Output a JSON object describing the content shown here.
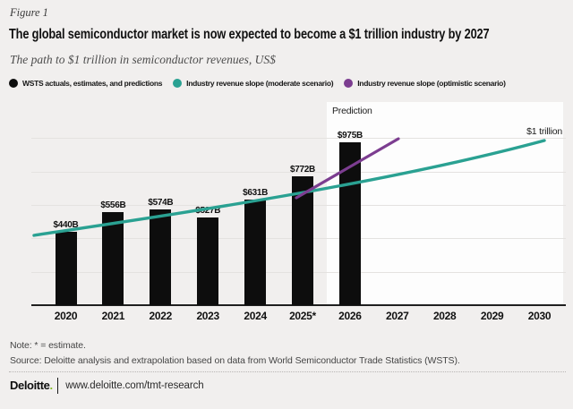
{
  "page": {
    "figure_label": "Figure 1",
    "title": "The global semiconductor market is now expected to become a $1 trillion industry by 2027",
    "subtitle": "The path to $1 trillion in semiconductor revenues, US$",
    "note": "Note: * = estimate.",
    "source": "Source: Deloitte analysis and extrapolation based on data from World Semiconductor Trade Statistics (WSTS).",
    "footer": {
      "brand": "Deloitte",
      "brand_dot": ".",
      "url": "www.deloitte.com/tmt-research"
    }
  },
  "legend": [
    {
      "label": "WSTS actuals, estimates, and predictions",
      "color": "#0d0d0d"
    },
    {
      "label": "Industry revenue slope (moderate scenario)",
      "color": "#2aa192"
    },
    {
      "label": "Industry revenue slope (optimistic scenario)",
      "color": "#7c3d90"
    }
  ],
  "chart_data": {
    "type": "bar",
    "title": "The global semiconductor market is now expected to become a $1 trillion industry by 2027",
    "xlabel": "",
    "ylabel": "",
    "unit": "US$ billions",
    "ylim": [
      0,
      1050
    ],
    "grid_step": 200,
    "grid": "horizontal",
    "legend_position": "top",
    "categories": [
      "2020",
      "2021",
      "2022",
      "2023",
      "2024",
      "2025*",
      "2026",
      "2027",
      "2028",
      "2029",
      "2030"
    ],
    "series": [
      {
        "name": "WSTS actuals, estimates, and predictions",
        "type": "bar",
        "values": [
          440,
          556,
          574,
          527,
          631,
          772,
          975
        ],
        "data_labels": [
          "$440B",
          "$556B",
          "$574B",
          "$527B",
          "$631B",
          "$772B",
          "$975B"
        ]
      },
      {
        "name": "Industry revenue slope (moderate scenario)",
        "type": "line",
        "x": [
          "2020",
          "2021",
          "2022",
          "2023",
          "2024",
          "2025",
          "2026",
          "2027",
          "2028",
          "2029",
          "2030"
        ],
        "values": [
          445,
          490,
          535,
          575,
          615,
          665,
          720,
          775,
          840,
          915,
          1000
        ]
      },
      {
        "name": "Industry revenue slope (optimistic scenario)",
        "type": "line",
        "x": [
          "2025",
          "2026",
          "2027"
        ],
        "values": [
          670,
          835,
          1000
        ]
      }
    ],
    "annotations": {
      "prediction": "Prediction",
      "target": "$1 trillion"
    }
  }
}
